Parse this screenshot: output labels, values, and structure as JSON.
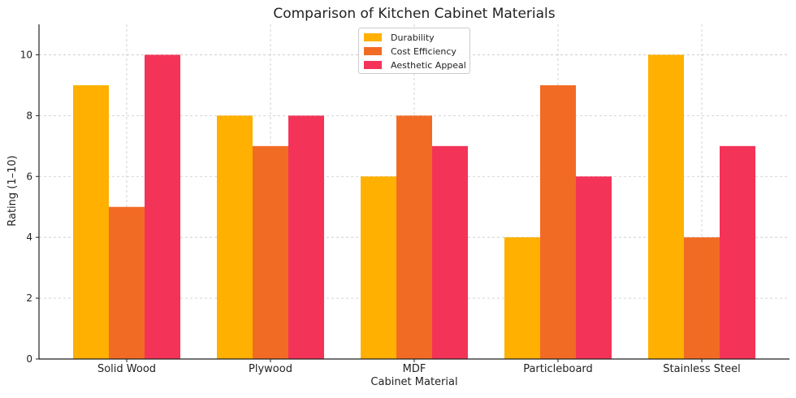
{
  "chart_data": {
    "type": "bar",
    "title": "Comparison of Kitchen Cabinet Materials",
    "xlabel": "Cabinet Material",
    "ylabel": "Rating (1–10)",
    "categories": [
      "Solid Wood",
      "Plywood",
      "MDF",
      "Particleboard",
      "Stainless Steel"
    ],
    "series": [
      {
        "name": "Durability",
        "values": [
          9,
          8,
          6,
          4,
          10
        ],
        "color": "#ffb000"
      },
      {
        "name": "Cost Efficiency",
        "values": [
          5,
          7,
          8,
          9,
          4
        ],
        "color": "#f26b24"
      },
      {
        "name": "Aesthetic Appeal",
        "values": [
          10,
          8,
          7,
          6,
          7
        ],
        "color": "#f43358"
      }
    ],
    "ylim": [
      0,
      11
    ],
    "yticks": [
      "0",
      "2",
      "4",
      "6",
      "8",
      "10"
    ],
    "grid": true,
    "legend_position": "top-center"
  }
}
